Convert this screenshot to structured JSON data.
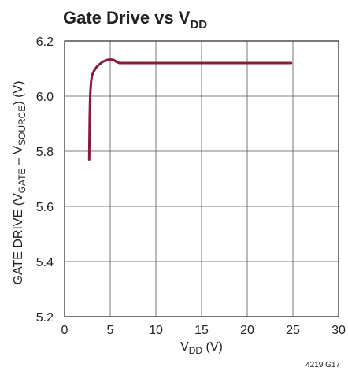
{
  "chart_data": {
    "type": "line",
    "title": {
      "main": "Gate Drive vs V",
      "sub": "DD"
    },
    "xlabel": {
      "main": "V",
      "sub": "DD",
      "suffix": " (V)"
    },
    "ylabel": {
      "p1": "GATE DRIVE (V",
      "s1": "GATE",
      "p2": " – V",
      "s2": "SOURCE",
      "p3": ") (V)"
    },
    "xlim": [
      0,
      30
    ],
    "ylim": [
      5.2,
      6.2
    ],
    "x_ticks": [
      "0",
      "5",
      "10",
      "15",
      "20",
      "25",
      "30"
    ],
    "y_ticks": [
      "5.2",
      "5.4",
      "5.6",
      "5.8",
      "6.0",
      "6.2"
    ],
    "grid": true,
    "series": [
      {
        "color": "#8b1a3a",
        "x": [
          2.7,
          2.75,
          2.8,
          2.9,
          3.0,
          3.2,
          3.5,
          3.8,
          4.2,
          4.6,
          5.0,
          5.4,
          5.7,
          6.0,
          6.5,
          8,
          10,
          15,
          20,
          24.8
        ],
        "y": [
          5.77,
          5.92,
          6.0,
          6.05,
          6.075,
          6.09,
          6.105,
          6.115,
          6.125,
          6.131,
          6.133,
          6.131,
          6.124,
          6.12,
          6.12,
          6.12,
          6.12,
          6.12,
          6.12,
          6.12
        ]
      }
    ]
  },
  "figure_id": "4219 G17"
}
